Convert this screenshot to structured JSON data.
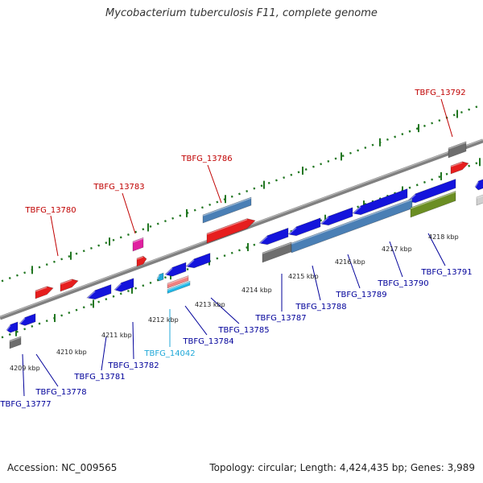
{
  "title": "Mycobacterium tuberculosis F11, complete genome",
  "footer": {
    "accession": "Accession: NC_009565",
    "summary": "Topology: circular; Length: 4,424,435 bp; Genes: 3,989"
  },
  "colors": {
    "forward_gene": "#e61e1e",
    "reverse_gene": "#1414dc",
    "pseudo_gene": "#6e6e6e",
    "rna_steelblue": "#4a7fb5",
    "olive_gene": "#6b8e23",
    "magenta_gene": "#e020a0",
    "label_red": "#c00000",
    "label_blue": "#00009a",
    "label_cyan": "#20a8d8",
    "track_gray": "#808080",
    "tick_green": "#227722"
  },
  "kbp_ticks": [
    "4209 kbp",
    "4210 kbp",
    "4211 kbp",
    "4212 kbp",
    "4213 kbp",
    "4214 kbp",
    "4215 kbp",
    "4216 kbp",
    "4217 kbp",
    "4218 kbp"
  ],
  "gene_labels": [
    {
      "name": "TBFG_13780",
      "color": "red"
    },
    {
      "name": "TBFG_13783",
      "color": "red"
    },
    {
      "name": "TBFG_13786",
      "color": "red"
    },
    {
      "name": "TBFG_13792",
      "color": "red"
    },
    {
      "name": "TBFG_13777",
      "color": "blue"
    },
    {
      "name": "TBFG_13778",
      "color": "blue"
    },
    {
      "name": "TBFG_13781",
      "color": "blue"
    },
    {
      "name": "TBFG_13782",
      "color": "blue"
    },
    {
      "name": "TBFG_14042",
      "color": "cyan"
    },
    {
      "name": "TBFG_13784",
      "color": "blue"
    },
    {
      "name": "TBFG_13785",
      "color": "blue"
    },
    {
      "name": "TBFG_13787",
      "color": "blue"
    },
    {
      "name": "TBFG_13788",
      "color": "blue"
    },
    {
      "name": "TBFG_13789",
      "color": "blue"
    },
    {
      "name": "TBFG_13790",
      "color": "blue"
    },
    {
      "name": "TBFG_13791",
      "color": "blue"
    }
  ]
}
